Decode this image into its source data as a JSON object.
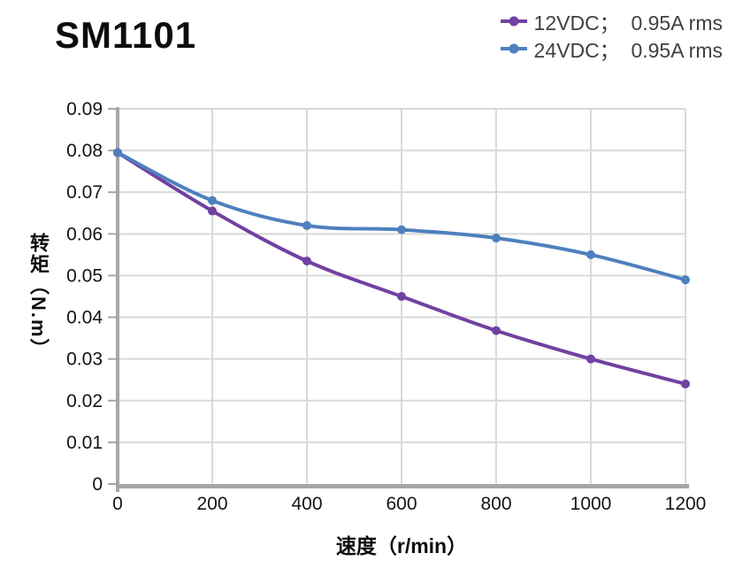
{
  "chart_data": {
    "type": "line",
    "title": "SM1101",
    "xlabel": "速度（r/min）",
    "ylabel": "转矩（N.m）",
    "x": [
      0,
      200,
      400,
      600,
      800,
      1000,
      1200
    ],
    "x_tick_labels": [
      "0",
      "200",
      "400",
      "600",
      "800",
      "1000",
      "1200"
    ],
    "y_ticks": [
      0,
      0.01,
      0.02,
      0.03,
      0.04,
      0.05,
      0.06,
      0.07,
      0.08,
      0.09
    ],
    "y_tick_labels": [
      "0",
      "0.01",
      "0.02",
      "0.03",
      "0.04",
      "0.05",
      "0.06",
      "0.07",
      "0.08",
      "0.09"
    ],
    "xlim": [
      0,
      1200
    ],
    "ylim": [
      0,
      0.09
    ],
    "grid": true,
    "smooth_lines": true,
    "legend_position": "top-right",
    "series": [
      {
        "name": "12VDC；  0.95A rms",
        "color": "#7141A1",
        "values": [
          0.0795,
          0.0655,
          0.0535,
          0.045,
          0.0368,
          0.03,
          0.024
        ]
      },
      {
        "name": "24VDC；  0.95A rms",
        "color": "#4E80BE",
        "values": [
          0.0795,
          0.068,
          0.062,
          0.061,
          0.059,
          0.055,
          0.049
        ]
      }
    ]
  },
  "style": {
    "grid_color": "#d9d9d9",
    "axis_color": "#a6a6a6",
    "tick_label_color": "#141414",
    "legend_text_color": "#404040",
    "title_color": "#0d0d0d"
  }
}
